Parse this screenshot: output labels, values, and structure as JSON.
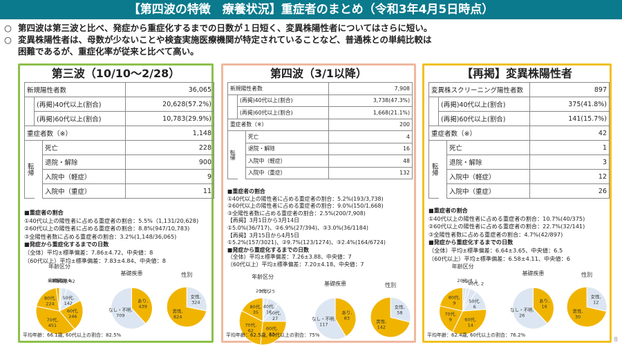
{
  "title": "【第四波の特徴　療養状況】重症者のまとめ（令和3年4月5日時点）",
  "bullets": [
    {
      "mark": "○",
      "text": "第四波は第三波と比べ、発症から重症化するまでの日数が１日短く、変異株陽性者についてはさらに短い。"
    },
    {
      "mark": "○",
      "text": "変異株陽性者は、母数が少ないことや検査実施医療機関が特定されていることなど、普通株との単純比較は"
    },
    {
      "mark": "",
      "text": "困難であるが、重症化率が従来と比べて高い。"
    }
  ],
  "panels": [
    {
      "heading": "第三波（10/10～2/28）",
      "table": {
        "new_label": "新規陽性者数",
        "new_val": "36,065",
        "age40_label": "(再掲)40代以上(割合)",
        "age40_val": "20,628(57.2%)",
        "age60_label": "(再掲)60代以上(割合)",
        "age60_val": "10,783(29.9%)",
        "severe_label": "重症者数（※）",
        "severe_val": "1,148",
        "outcome_label": "転帰",
        "death_label": "死亡",
        "death_val": "228",
        "discharge_label": "退院・解除",
        "discharge_val": "900",
        "mild_label": "入院中（軽症）",
        "mild_val": "9",
        "sev_label": "入院中（重症）",
        "sev_val": "11"
      },
      "notes": [
        "■重症者の割合",
        "①40代以上の陽性者に占める重症者の割合：5.5%（1,131/20,628)",
        "②60代以上の陽性者に占める重症者の割合：8.8%(947/10,783)",
        "③全陽性者数に占める重症者の割合：3.2%(1,148/36,065)",
        "■発症から重症化するまでの日数",
        "（全体）平均±標準偏差：7.86±4.72、中央値：8",
        "（60代以上）平均±標準偏差：7.83±4.84、中央値：8"
      ],
      "pie_titles": [
        "年齢区分",
        "基礎疾患",
        "性別"
      ],
      "age_pie": [
        {
          "label": "未就学児, 1",
          "value": 1
        },
        {
          "label": "20代, 2",
          "value": 2
        },
        {
          "label": "30代, 14",
          "value": 14
        },
        {
          "label": "40代, 42",
          "value": 42
        },
        {
          "label": "50代, 142",
          "value": 142
        },
        {
          "label": "60代, 246",
          "value": 246
        },
        {
          "label": "70代, 451",
          "value": 451
        },
        {
          "label": "80代, 224",
          "value": 224
        },
        {
          "label": "90代, 26",
          "value": 26
        }
      ],
      "disease_pie": [
        {
          "label": "あり, 439",
          "value": 439
        },
        {
          "label": "なし・不明, 709",
          "value": 709
        }
      ],
      "sex_pie": [
        {
          "label": "女性, 324",
          "value": 324
        },
        {
          "label": "男性, 824",
          "value": 824
        }
      ],
      "footer": "平均年齢：66.1歳, 60代以上の割合：82.5%"
    },
    {
      "heading": "第四波（3/1以降）",
      "table": {
        "new_label": "新規陽性者数",
        "new_val": "7,908",
        "age40_label": "(再掲)40代以上(割合)",
        "age40_val": "3,738(47.3%)",
        "age60_label": "(再掲)60代以上(割合)",
        "age60_val": "1,668(21.1%)",
        "severe_label": "重症者数（※）",
        "severe_val": "200",
        "outcome_label": "転帰",
        "death_label": "死亡",
        "death_val": "4",
        "discharge_label": "退院・解除",
        "discharge_val": "16",
        "mild_label": "入院中（軽症）",
        "mild_val": "48",
        "sev_label": "入院中（重症）",
        "sev_val": "132"
      },
      "notes": [
        "■重症者の割合",
        "①40代以上の陽性者に占める重症者の割合：5.2%(193/3,738)",
        "②60代以上の陽性者に占める重症者の割合：9.0%(150/1,668)",
        "③全陽性者数に占める重症者の割合：2.5%(200/7,908)",
        "【再掲】3月1日から3月14日",
        "①5.0%(36/717)、②6.9%(27/394)、③3.0%(36/1184)",
        "【再掲】3月15日から4月5日",
        "①5.2%(157/3021)、②9.7%(123/1274)、③2.4%(164/6724)",
        "■発症から重症化するまでの日数",
        "（全体）平均±標準偏差：7.26±3.88、中央値：7",
        "（60代以上）平均±標準偏差：7.20±4.18、中央値：7"
      ],
      "pie_titles": [
        "年齢区分",
        "基礎疾患",
        "性別"
      ],
      "age_pie": [
        {
          "label": "20代, 2",
          "value": 2
        },
        {
          "label": "30代, 5",
          "value": 5
        },
        {
          "label": "40代, 16",
          "value": 16
        },
        {
          "label": "50代, 27",
          "value": 27
        },
        {
          "label": "60代, 53",
          "value": 53
        },
        {
          "label": "70代, 62",
          "value": 62
        },
        {
          "label": "80代, 35",
          "value": 35
        }
      ],
      "disease_pie": [
        {
          "label": "あり, 83",
          "value": 83
        },
        {
          "label": "なし・不明, 117",
          "value": 117
        }
      ],
      "sex_pie": [
        {
          "label": "女性, 58",
          "value": 58
        },
        {
          "label": "男性, 142",
          "value": 142
        }
      ],
      "footer": "平均年齢：62.5歳, 60代以上の割合：75%"
    },
    {
      "heading": "【再掲】変異株陽性者",
      "table": {
        "new_label": "変異株スクリーニング陽性者数",
        "new_val": "897",
        "age40_label": "(再掲)40代以上(割合)",
        "age40_val": "375(41.8%)",
        "age60_label": "(再掲)60代以上(割合)",
        "age60_val": "141(15.7%)",
        "severe_label": "重症者数（※）",
        "severe_val": "42",
        "outcome_label": "転帰",
        "death_label": "死亡",
        "death_val": "1",
        "discharge_label": "退院・解除",
        "discharge_val": "3",
        "mild_label": "入院中（軽症）",
        "mild_val": "12",
        "sev_label": "入院中（重症）",
        "sev_val": "26"
      },
      "notes": [
        "■重症者の割合",
        "①40代以上の陽性者に占める重症者の割合：10.7%(40/375)",
        "②60代以上の陽性者に占める重症者の割合：22.7%(32/141)",
        "③全陽性者数に占める重症者の割合：4.7%(42/897)",
        "■発症から重症化するまでの日数",
        "（全体）平均±標準偏差：6.64±3.65、中央値：6.5",
        "（60代以上）平均±標準偏差：6.58±4.11、中央値：6"
      ],
      "pie_titles": [
        "年齢区分",
        "基礎疾患",
        "性別"
      ],
      "age_pie": [
        {
          "label": "20代, 1",
          "value": 1
        },
        {
          "label": "30代, 1",
          "value": 1
        },
        {
          "label": "40代, 2",
          "value": 2
        },
        {
          "label": "50代, 6",
          "value": 6
        },
        {
          "label": "60代, 14",
          "value": 14
        },
        {
          "label": "70代, 9",
          "value": 9
        },
        {
          "label": "80代, 9",
          "value": 9
        }
      ],
      "disease_pie": [
        {
          "label": "あり, 16",
          "value": 16
        },
        {
          "label": "なし・不明, 26",
          "value": 26
        }
      ],
      "sex_pie": [
        {
          "label": "女性, 12",
          "value": 12
        },
        {
          "label": "男性, 30",
          "value": 30
        }
      ],
      "footer": "平均年齢：62.4歳, 60代以上の割合：76.2%"
    }
  ],
  "page_number": "8",
  "colors": {
    "title_bg": "#0b7a8c",
    "pie_orange": "#f0b400",
    "pie_blue": "#dce6f2",
    "panel1": "#8dc04a",
    "panel2": "#f0b89e",
    "panel3": "#f0c020"
  }
}
